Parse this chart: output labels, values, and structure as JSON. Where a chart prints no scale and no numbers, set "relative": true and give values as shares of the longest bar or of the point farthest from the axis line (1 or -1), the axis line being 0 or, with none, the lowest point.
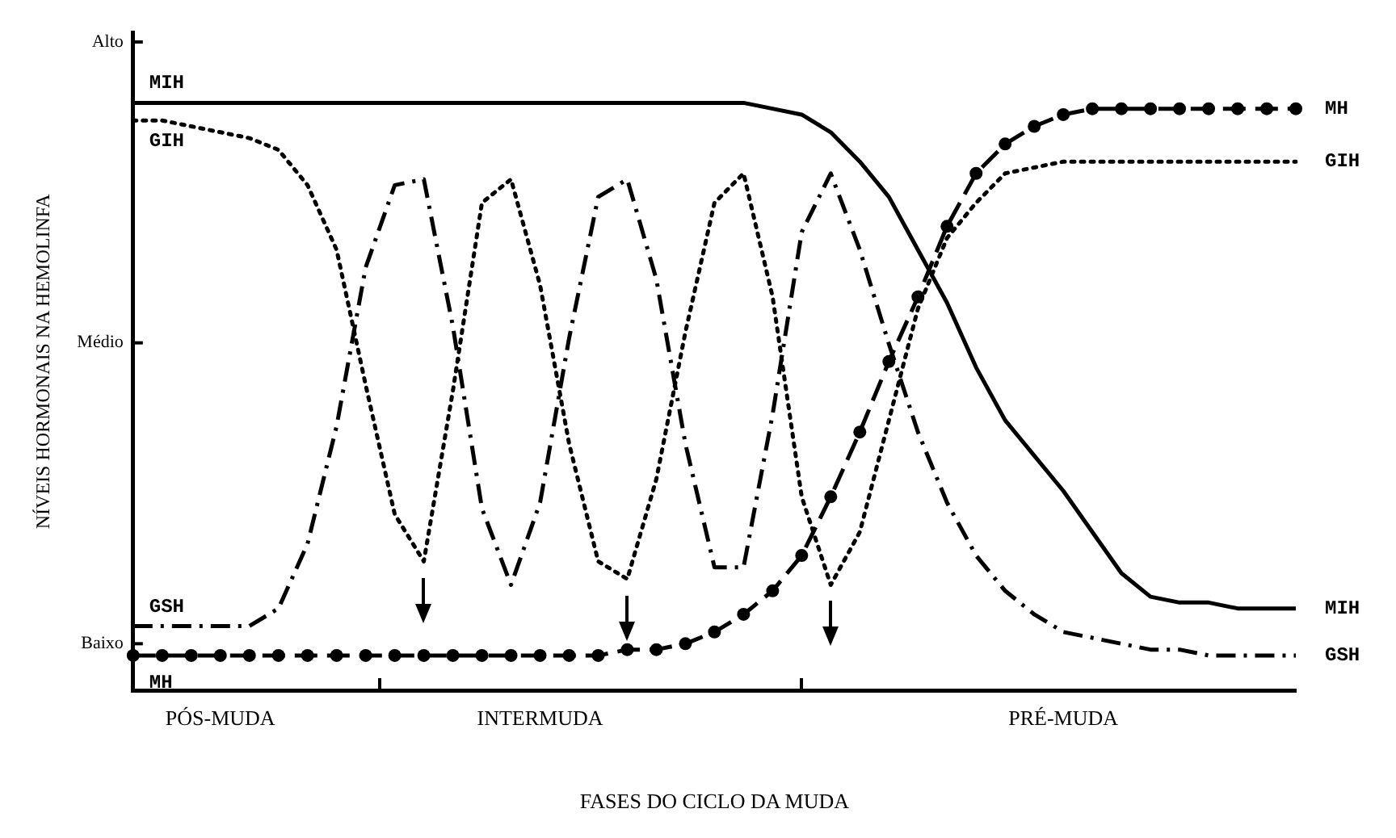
{
  "chart_data": {
    "type": "line",
    "relative": true,
    "xlabel": "FASES DO CICLO DA MUDA",
    "ylabel": "NÍVEIS HORMONAIS NA HEMOLINFA",
    "categories": [
      null,
      null,
      null,
      "PÓS-MUDA",
      null,
      null,
      null,
      null,
      null,
      null,
      null,
      null,
      null,
      null,
      "INTERMUDA",
      null,
      null,
      null,
      null,
      null,
      null,
      null,
      null,
      null,
      null,
      null,
      null,
      null,
      null,
      null,
      null,
      null,
      "PRÉ-MUDA",
      null,
      null,
      null,
      null,
      null,
      null,
      null,
      null
    ],
    "annotations": [
      "Alto",
      "Médio",
      "Baixo"
    ],
    "grid": false,
    "legend": false,
    "series": [
      {
        "name": "MIH",
        "color": "#000000",
        "line_style": "solid",
        "marker": "none",
        "values": [
          1,
          1,
          1,
          1,
          1,
          1,
          1,
          1,
          1,
          1,
          1,
          1,
          1,
          1,
          1,
          1,
          1,
          1,
          1,
          1,
          1,
          1,
          0.99,
          0.98,
          0.95,
          0.9,
          0.84,
          0.75,
          0.66,
          0.55,
          0.46,
          0.4,
          0.34,
          0.27,
          0.2,
          0.16,
          0.15,
          0.15,
          0.14,
          0.14,
          0.14
        ]
      },
      {
        "name": "GIH",
        "color": "#000000",
        "line_style": "dotted",
        "marker": "none",
        "values": [
          0.97,
          0.97,
          0.96,
          0.95,
          0.94,
          0.92,
          0.86,
          0.75,
          0.52,
          0.3,
          0.22,
          0.51,
          0.83,
          0.87,
          0.69,
          0.42,
          0.22,
          0.19,
          0.36,
          0.61,
          0.83,
          0.88,
          0.67,
          0.33,
          0.18,
          0.27,
          0.46,
          0.65,
          0.77,
          0.83,
          0.88,
          0.89,
          0.9,
          0.9,
          0.9,
          0.9,
          0.9,
          0.9,
          0.9,
          0.9,
          0.9
        ]
      },
      {
        "name": "GSH",
        "color": "#000000",
        "line_style": "dashdot",
        "marker": "none",
        "values": [
          0.11,
          0.11,
          0.11,
          0.11,
          0.11,
          0.14,
          0.25,
          0.45,
          0.72,
          0.86,
          0.87,
          0.62,
          0.31,
          0.18,
          0.32,
          0.6,
          0.84,
          0.87,
          0.7,
          0.42,
          0.21,
          0.21,
          0.47,
          0.78,
          0.88,
          0.75,
          0.59,
          0.44,
          0.32,
          0.23,
          0.17,
          0.13,
          0.1,
          0.09,
          0.08,
          0.07,
          0.07,
          0.06,
          0.06,
          0.06,
          0.06
        ]
      },
      {
        "name": "MH",
        "color": "#000000",
        "line_style": "dashed",
        "marker": "circle",
        "values": [
          0.06,
          0.06,
          0.06,
          0.06,
          0.06,
          0.06,
          0.06,
          0.06,
          0.06,
          0.06,
          0.06,
          0.06,
          0.06,
          0.06,
          0.06,
          0.06,
          0.06,
          0.07,
          0.07,
          0.08,
          0.1,
          0.13,
          0.17,
          0.23,
          0.33,
          0.44,
          0.56,
          0.67,
          0.79,
          0.88,
          0.93,
          0.96,
          0.98,
          0.99,
          0.99,
          0.99,
          0.99,
          0.99,
          0.99,
          0.99,
          0.99
        ]
      }
    ]
  }
}
